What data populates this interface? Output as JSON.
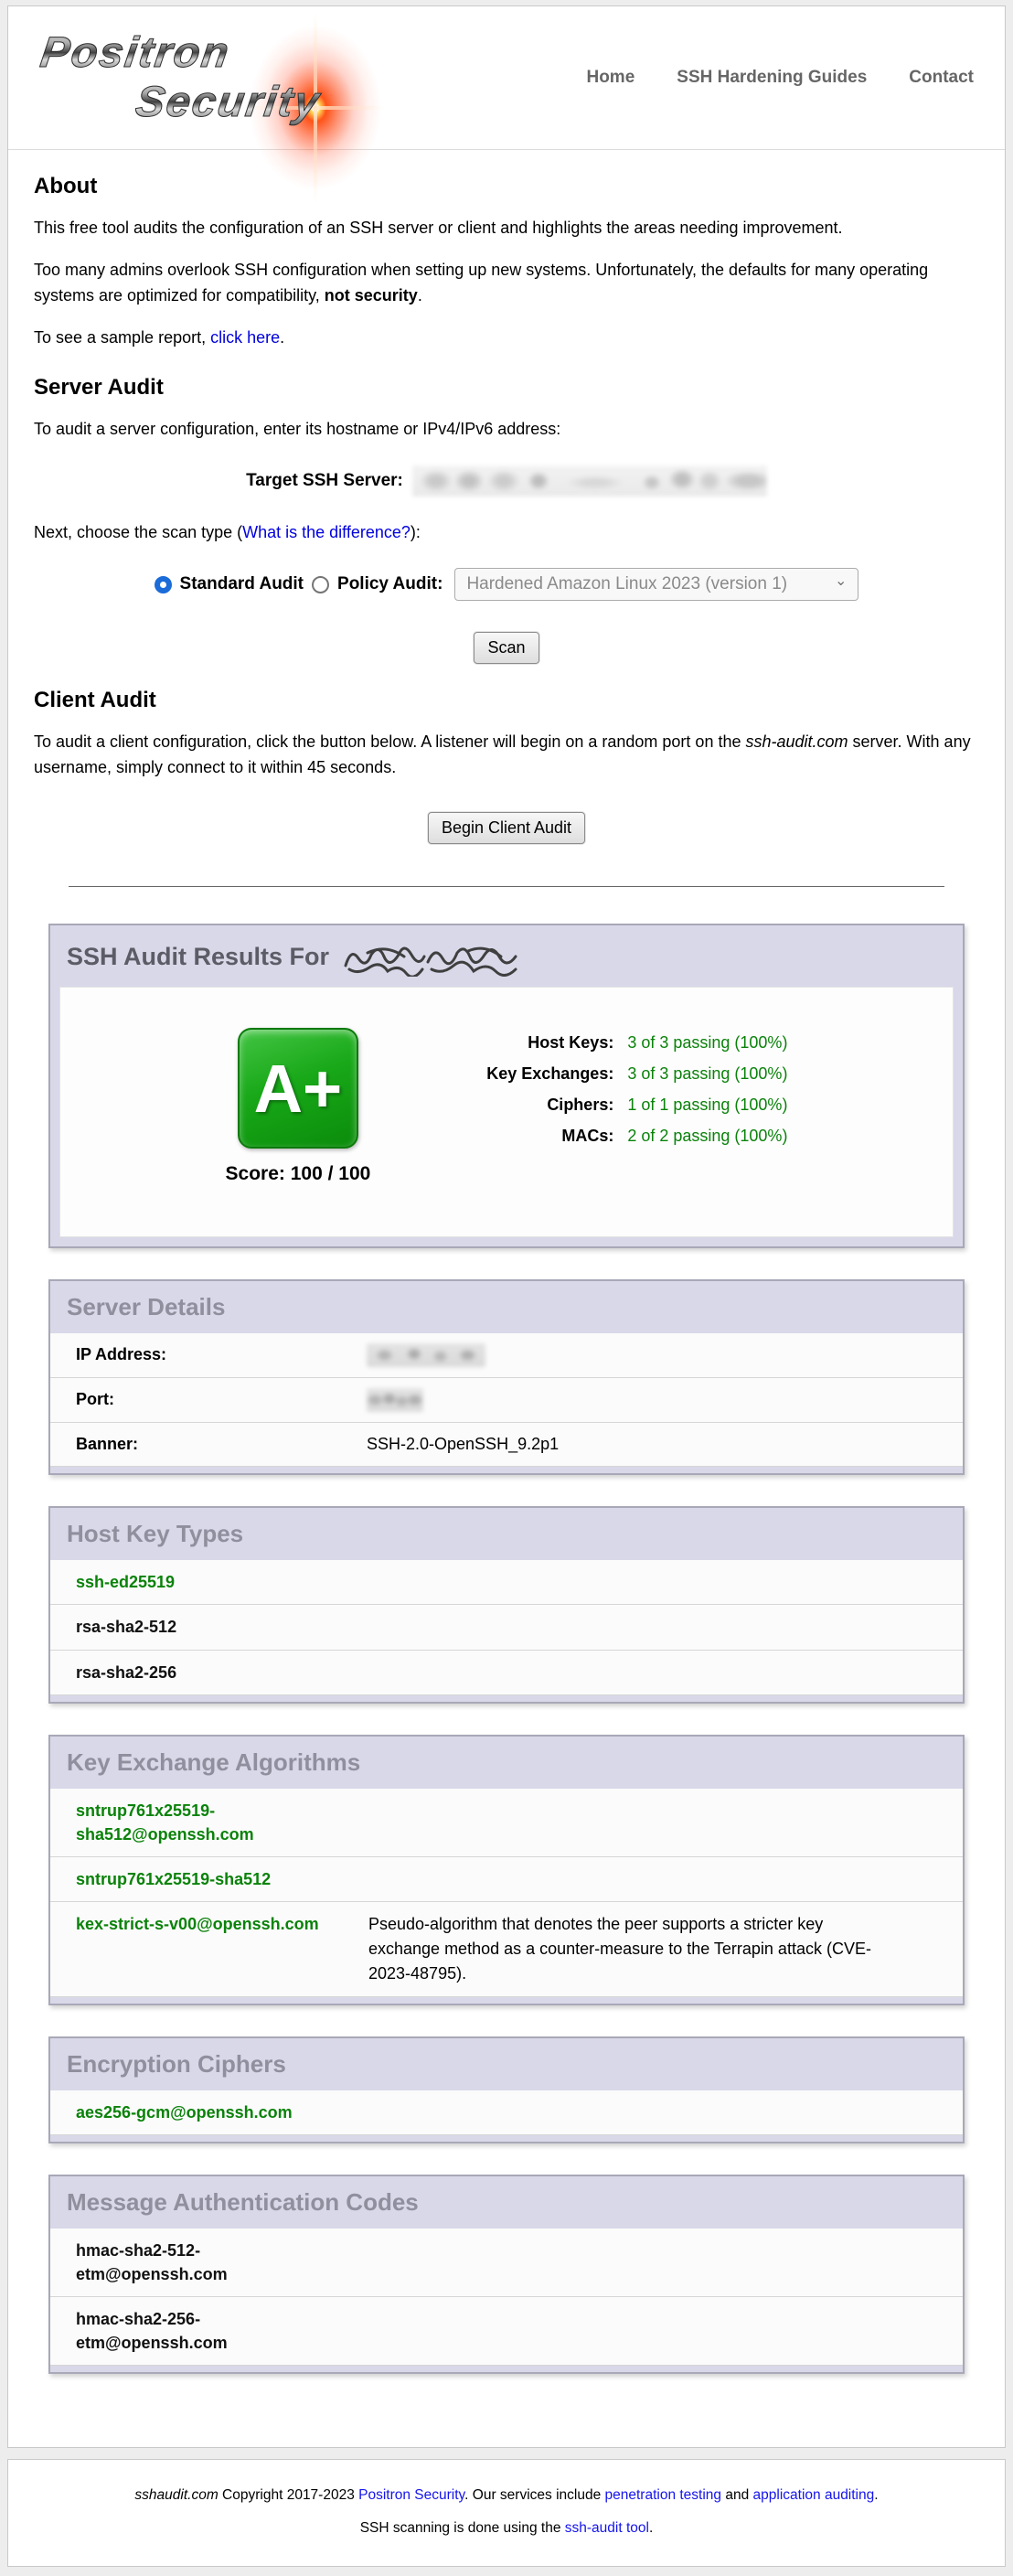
{
  "brand": {
    "line1": "Positron",
    "line2": "Security"
  },
  "nav": {
    "items": [
      {
        "label": "Home"
      },
      {
        "label": "SSH Hardening Guides"
      },
      {
        "label": "Contact"
      }
    ]
  },
  "about": {
    "heading": "About",
    "p1": "This free tool audits the configuration of an SSH server or client and highlights the areas needing improvement.",
    "p2_pre": "Too many admins overlook SSH configuration when setting up new systems. Unfortunately, the defaults for many operating systems are optimized for compatibility, ",
    "p2_bold": "not security",
    "p2_post": ".",
    "sample_pre": "To see a sample report, ",
    "sample_link": "click here",
    "sample_post": "."
  },
  "server_audit": {
    "heading": "Server Audit",
    "intro": "To audit a server configuration, enter its hostname or IPv4/IPv6 address:",
    "target_label": "Target SSH Server:",
    "scan_type_pre": "Next, choose the scan type (",
    "scan_type_link": "What is the difference?",
    "scan_type_post": "):",
    "standard_label": "Standard Audit",
    "policy_label": "Policy Audit:",
    "policy_select_value": "Hardened Amazon Linux 2023 (version 1)",
    "scan_button": "Scan"
  },
  "client_audit": {
    "heading": "Client Audit",
    "intro_pre": "To audit a client configuration, click the button below. A listener will begin on a random port on the ",
    "intro_italic": "ssh-audit.com",
    "intro_post": " server. With any username, simply connect to it within 45 seconds.",
    "button": "Begin Client Audit"
  },
  "results": {
    "title": "SSH Audit Results For",
    "hostname_redacted": true,
    "grade": "A+",
    "score_label": "Score: 100 / 100",
    "stats": [
      {
        "label": "Host Keys:",
        "value": "3 of 3 passing (100%)"
      },
      {
        "label": "Key Exchanges:",
        "value": "3 of 3 passing (100%)"
      },
      {
        "label": "Ciphers:",
        "value": "1 of 1 passing (100%)"
      },
      {
        "label": "MACs:",
        "value": "2 of 2 passing (100%)"
      }
    ]
  },
  "server_details": {
    "title": "Server Details",
    "rows": [
      {
        "label": "IP Address:",
        "value": "",
        "redacted": true,
        "redact_width": 130
      },
      {
        "label": "Port:",
        "value": "",
        "redacted": true,
        "redact_width": 62
      },
      {
        "label": "Banner:",
        "value": "SSH-2.0-OpenSSH_9.2p1",
        "redacted": false
      }
    ]
  },
  "host_keys": {
    "title": "Host Key Types",
    "items": [
      {
        "name": "ssh-ed25519",
        "status": "good",
        "note": ""
      },
      {
        "name": "rsa-sha2-512",
        "status": "neutral",
        "note": ""
      },
      {
        "name": "rsa-sha2-256",
        "status": "neutral",
        "note": ""
      }
    ]
  },
  "kex": {
    "title": "Key Exchange Algorithms",
    "items": [
      {
        "name": "sntrup761x25519-sha512@openssh.com",
        "status": "good",
        "note": ""
      },
      {
        "name": "sntrup761x25519-sha512",
        "status": "good",
        "note": ""
      },
      {
        "name": "kex-strict-s-v00@openssh.com",
        "status": "good",
        "note": "Pseudo-algorithm that denotes the peer supports a stricter key exchange method as a counter-measure to the Terrapin attack (CVE-2023-48795)."
      }
    ]
  },
  "ciphers": {
    "title": "Encryption Ciphers",
    "items": [
      {
        "name": "aes256-gcm@openssh.com",
        "status": "good",
        "note": ""
      }
    ]
  },
  "macs": {
    "title": "Message Authentication Codes",
    "items": [
      {
        "name": "hmac-sha2-512-etm@openssh.com",
        "status": "neutral",
        "note": ""
      },
      {
        "name": "hmac-sha2-256-etm@openssh.com",
        "status": "neutral",
        "note": ""
      }
    ]
  },
  "footer": {
    "l1_site": "sshaudit.com",
    "l1_a": " Copyright 2017-2023 ",
    "l1_link1": "Positron Security",
    "l1_b": ". Our services include ",
    "l1_link2": "penetration testing",
    "l1_c": " and ",
    "l1_link3": "application auditing",
    "l1_d": ".",
    "l2_a": "SSH scanning is done using the ",
    "l2_link": "ssh-audit tool",
    "l2_b": "."
  },
  "icons": {
    "chevron_down": "⌄"
  },
  "colors": {
    "good": "#0a820a",
    "lavender": "#d8d8e9",
    "link": "#0000dd",
    "title_gray": "#8f8f9e",
    "results_title": "#5c5c66",
    "nav_gray": "#666666"
  }
}
